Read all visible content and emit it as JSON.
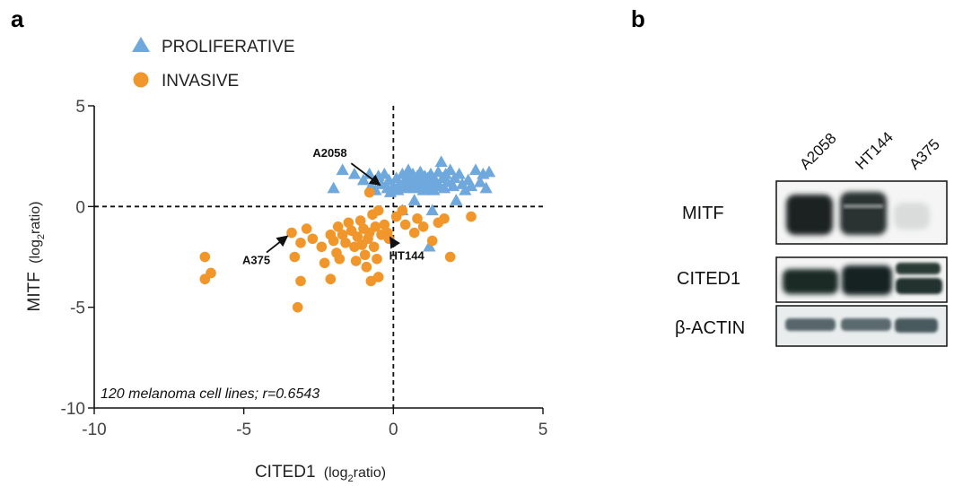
{
  "panels": {
    "a": "a",
    "b": "b"
  },
  "chart_data": {
    "type": "scatter",
    "title": "",
    "xlabel_main": "CITED1",
    "xlabel_unit_pre": "(log",
    "xlabel_unit_sub": "2",
    "xlabel_unit_post": "ratio)",
    "ylabel_main": "MITF",
    "ylabel_unit_pre": "(log",
    "ylabel_unit_sub": "2",
    "ylabel_unit_post": "ratio)",
    "xlim": [
      -10,
      5
    ],
    "ylim": [
      -10,
      5
    ],
    "xticks": [
      -10,
      -5,
      0,
      5
    ],
    "yticks": [
      5,
      0,
      -5,
      -10
    ],
    "reference_lines": {
      "x": 0,
      "y": 0,
      "style": "dashed"
    },
    "legend_placement": "top-left",
    "corner_note": "120 melanoma cell lines; r=0.6543",
    "series": [
      {
        "name": "PROLIFERATIVE",
        "marker": "triangle",
        "color": "#6fa8dc",
        "points": [
          [
            -2.0,
            0.9
          ],
          [
            -1.7,
            1.8
          ],
          [
            -1.3,
            1.6
          ],
          [
            -1.0,
            1.3
          ],
          [
            -0.8,
            1.6
          ],
          [
            -0.75,
            1.0
          ],
          [
            -0.6,
            0.8
          ],
          [
            -0.5,
            1.5
          ],
          [
            -0.4,
            1.1
          ],
          [
            -0.3,
            1.6
          ],
          [
            -0.2,
            0.9
          ],
          [
            -0.15,
            1.3
          ],
          [
            -0.1,
            0.7
          ],
          [
            0.0,
            1.0
          ],
          [
            0.1,
            1.4
          ],
          [
            0.15,
            0.8
          ],
          [
            0.2,
            1.1
          ],
          [
            0.3,
            1.6
          ],
          [
            0.35,
            1.2
          ],
          [
            0.4,
            0.9
          ],
          [
            0.45,
            1.4
          ],
          [
            0.5,
            1.8
          ],
          [
            0.55,
            1.0
          ],
          [
            0.6,
            1.3
          ],
          [
            0.65,
            1.6
          ],
          [
            0.7,
            0.9
          ],
          [
            0.75,
            1.2
          ],
          [
            0.8,
            1.5
          ],
          [
            0.85,
            1.0
          ],
          [
            0.9,
            1.7
          ],
          [
            0.95,
            1.3
          ],
          [
            1.0,
            0.8
          ],
          [
            1.05,
            1.5
          ],
          [
            1.1,
            1.1
          ],
          [
            1.15,
            1.4
          ],
          [
            1.2,
            0.9
          ],
          [
            1.25,
            1.6
          ],
          [
            1.3,
            1.2
          ],
          [
            1.35,
            0.8
          ],
          [
            1.4,
            1.3
          ],
          [
            1.5,
            1.7
          ],
          [
            1.55,
            1.0
          ],
          [
            1.6,
            2.2
          ],
          [
            1.65,
            1.4
          ],
          [
            1.7,
            0.9
          ],
          [
            1.75,
            1.6
          ],
          [
            1.8,
            1.2
          ],
          [
            1.9,
            1.8
          ],
          [
            2.0,
            1.0
          ],
          [
            2.05,
            1.4
          ],
          [
            2.1,
            0.3
          ],
          [
            2.2,
            1.6
          ],
          [
            2.3,
            1.1
          ],
          [
            2.4,
            0.8
          ],
          [
            2.5,
            1.3
          ],
          [
            2.6,
            1.0
          ],
          [
            2.75,
            1.8
          ],
          [
            2.9,
            1.2
          ],
          [
            3.0,
            1.6
          ],
          [
            3.1,
            0.9
          ],
          [
            3.2,
            1.7
          ],
          [
            0.7,
            0.3
          ],
          [
            1.3,
            -0.2
          ],
          [
            1.2,
            -2.0
          ],
          [
            0.3,
            -0.2
          ]
        ]
      },
      {
        "name": "INVASIVE",
        "marker": "circle",
        "color": "#f0962a",
        "points": [
          [
            -6.3,
            -2.5
          ],
          [
            -6.3,
            -3.6
          ],
          [
            -6.1,
            -3.3
          ],
          [
            -3.4,
            -1.3
          ],
          [
            -3.3,
            -2.5
          ],
          [
            -3.2,
            -5.0
          ],
          [
            -3.1,
            -1.8
          ],
          [
            -3.1,
            -3.7
          ],
          [
            -2.7,
            -1.6
          ],
          [
            -2.4,
            -2.0
          ],
          [
            -2.3,
            -2.8
          ],
          [
            -2.1,
            -1.4
          ],
          [
            -2.1,
            -3.6
          ],
          [
            -2.0,
            -1.7
          ],
          [
            -1.9,
            -2.3
          ],
          [
            -1.85,
            -1.0
          ],
          [
            -1.8,
            -2.6
          ],
          [
            -1.7,
            -1.4
          ],
          [
            -1.6,
            -1.8
          ],
          [
            -1.5,
            -0.8
          ],
          [
            -1.4,
            -1.2
          ],
          [
            -1.3,
            -2.0
          ],
          [
            -1.25,
            -2.7
          ],
          [
            -1.2,
            -1.5
          ],
          [
            -1.1,
            -0.7
          ],
          [
            -1.05,
            -1.9
          ],
          [
            -1.0,
            -1.1
          ],
          [
            -0.95,
            -2.4
          ],
          [
            -0.9,
            -3.0
          ],
          [
            -0.85,
            -1.6
          ],
          [
            -0.8,
            -1.3
          ],
          [
            -0.75,
            -3.7
          ],
          [
            -0.7,
            -0.4
          ],
          [
            -0.65,
            -2.0
          ],
          [
            -0.6,
            -1.0
          ],
          [
            -0.55,
            -2.6
          ],
          [
            -0.5,
            -0.2
          ],
          [
            -0.8,
            0.7
          ],
          [
            -0.4,
            -1.4
          ],
          [
            -0.3,
            -0.9
          ],
          [
            -0.2,
            -1.3
          ],
          [
            -0.15,
            -1.6
          ],
          [
            0.1,
            -0.5
          ],
          [
            0.3,
            -0.2
          ],
          [
            0.4,
            -0.9
          ],
          [
            0.7,
            -1.3
          ],
          [
            0.8,
            -0.6
          ],
          [
            1.0,
            -1.0
          ],
          [
            1.3,
            -1.7
          ],
          [
            1.5,
            -0.8
          ],
          [
            1.7,
            -0.6
          ],
          [
            1.9,
            -2.5
          ],
          [
            2.6,
            -0.5
          ],
          [
            -2.9,
            -1.1
          ],
          [
            -0.5,
            -3.5
          ]
        ]
      }
    ],
    "annotations": [
      {
        "label": "A2058",
        "point": [
          -0.3,
          0.9
        ]
      },
      {
        "label": "A375",
        "point": [
          -3.4,
          -1.3
        ]
      },
      {
        "label": "HT144",
        "point": [
          -0.2,
          -1.3
        ]
      }
    ]
  },
  "blot": {
    "lanes": [
      "A2058",
      "HT144",
      "A375"
    ],
    "rows": [
      {
        "label": "MITF"
      },
      {
        "label": "CITED1"
      },
      {
        "label": "β-ACTIN"
      }
    ]
  }
}
